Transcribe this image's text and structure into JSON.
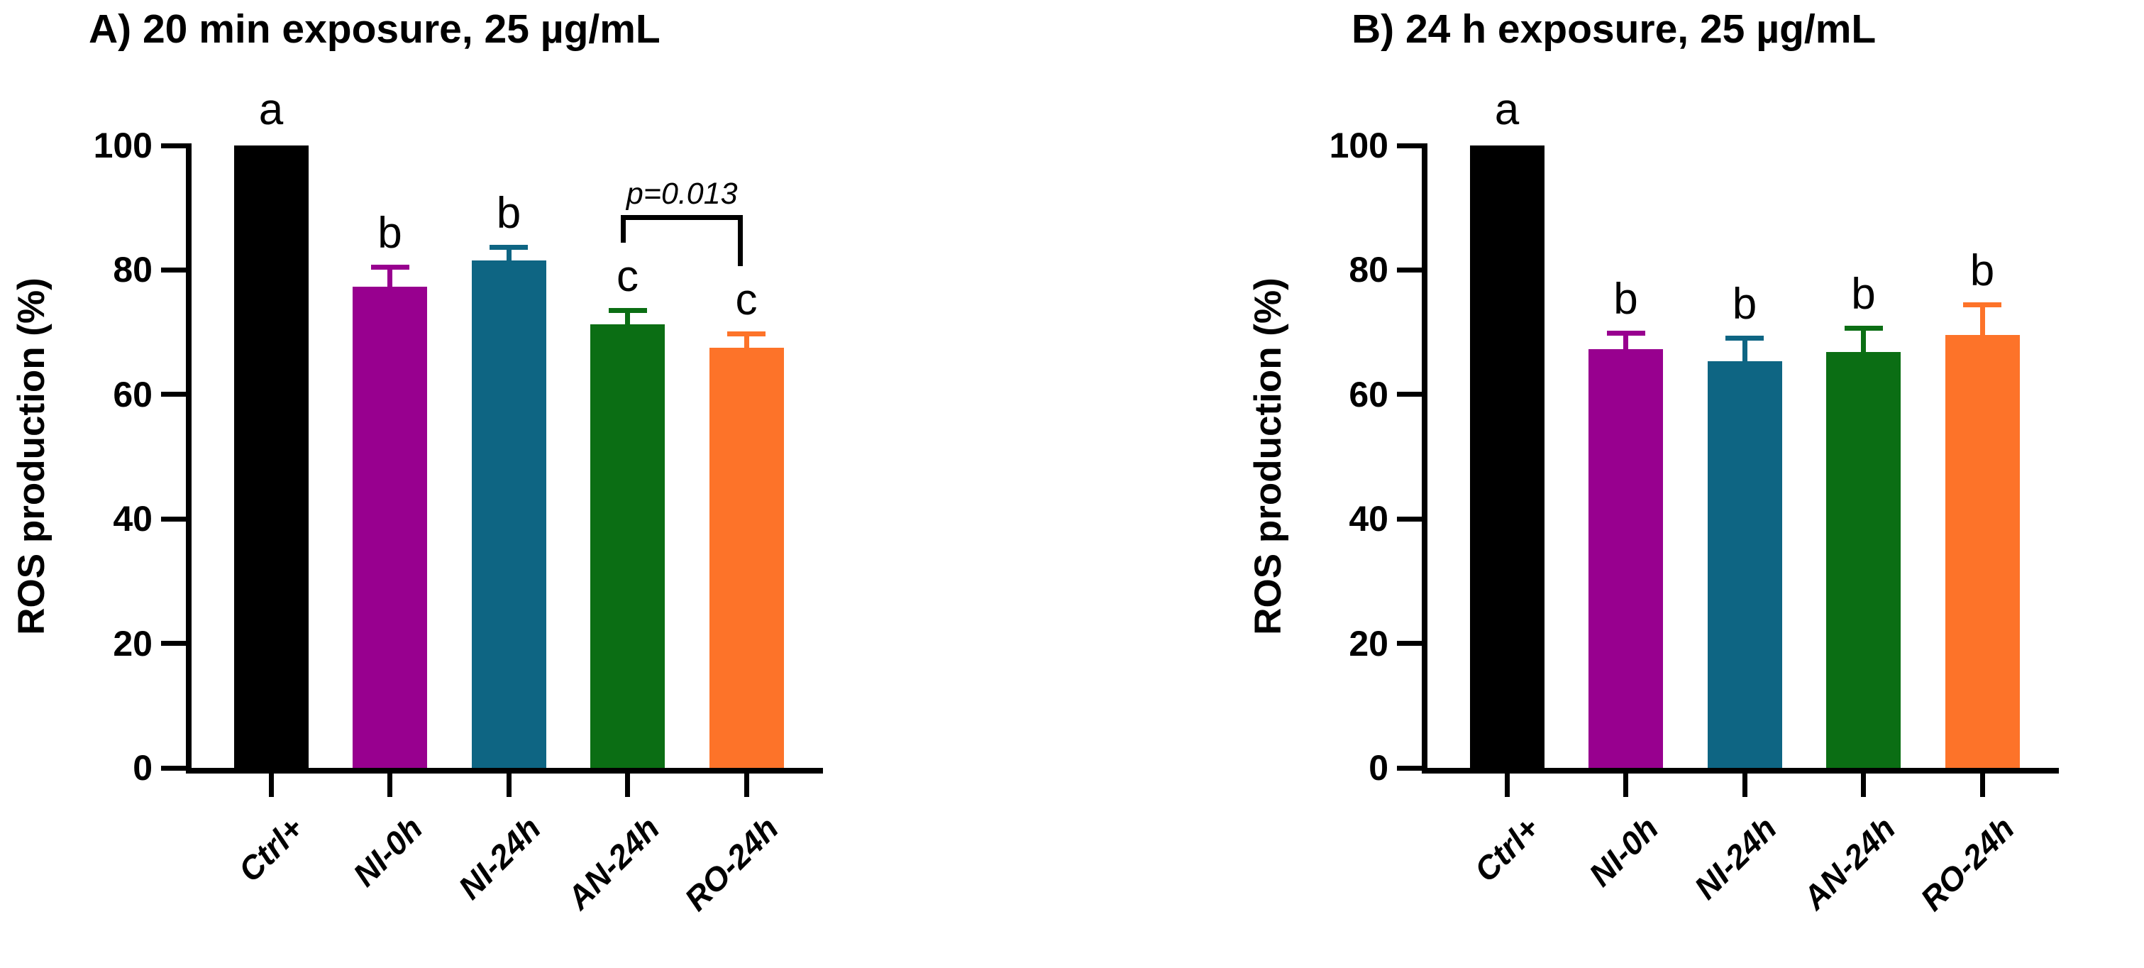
{
  "figure": {
    "background": "#ffffff",
    "text_color": "#000000"
  },
  "chart_data": [
    {
      "type": "bar",
      "title": "A) 20 min exposure, 25 µg/mL",
      "xlabel": "",
      "ylabel": "ROS production (%)",
      "ylim": [
        0,
        100
      ],
      "yticks": [
        0,
        20,
        40,
        60,
        80,
        100
      ],
      "grid": false,
      "legend": "none",
      "categories": [
        "Ctrl+",
        "NI-0h",
        "NI-24h",
        "AN-24h",
        "RO-24h"
      ],
      "values": [
        100,
        77.3,
        81.5,
        71.3,
        67.5
      ],
      "errors_plus": [
        0,
        2.9,
        1.8,
        1.9,
        1.9
      ],
      "sig_letters": [
        "a",
        "b",
        "b",
        "c",
        "c"
      ],
      "bar_colors": [
        "#000000",
        "#98008F",
        "#0E6583",
        "#0B6E14",
        "#FD7329"
      ],
      "annotation": {
        "label": "p=0.013",
        "from_category": "AN-24h",
        "to_category": "RO-24h",
        "from_index": 3,
        "to_index": 4
      }
    },
    {
      "type": "bar",
      "title": "B) 24 h exposure, 25 µg/mL",
      "xlabel": "",
      "ylabel": "ROS production (%)",
      "ylim": [
        0,
        100
      ],
      "yticks": [
        0,
        20,
        40,
        60,
        80,
        100
      ],
      "grid": false,
      "legend": "none",
      "categories": [
        "Ctrl+",
        "NI-0h",
        "NI-24h",
        "AN-24h",
        "RO-24h"
      ],
      "values": [
        100,
        67.3,
        65.3,
        66.8,
        69.5
      ],
      "errors_plus": [
        0,
        2.2,
        3.5,
        3.5,
        4.6
      ],
      "sig_letters": [
        "a",
        "b",
        "b",
        "b",
        "b"
      ],
      "bar_colors": [
        "#000000",
        "#98008F",
        "#0E6583",
        "#0B6E14",
        "#FD7329"
      ],
      "annotation": null
    }
  ]
}
